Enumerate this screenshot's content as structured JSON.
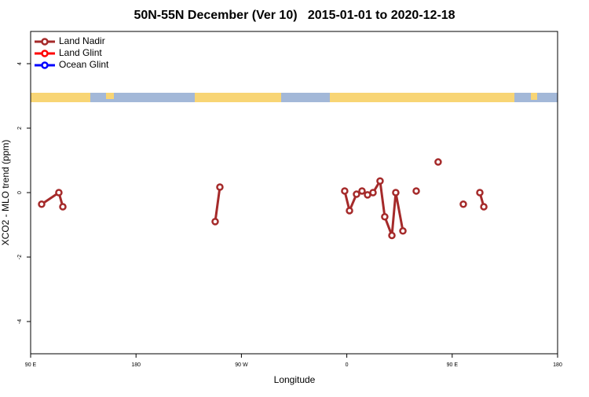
{
  "chart_data": {
    "type": "line",
    "title": "50N-55N December (Ver 10)   2015-01-01 to 2020-12-18",
    "x_label": "Longitude",
    "y_label": "XCO2 - MLO trend (ppm)",
    "xlim": [
      90,
      540
    ],
    "xticks": [
      {
        "value": 90,
        "label": "90 E"
      },
      180,
      {
        "value": 270,
        "label": "90 W"
      },
      {
        "value": 360,
        "label": "0"
      },
      {
        "value": 450,
        "label": "90 E"
      },
      {
        "value": 540,
        "label": "180"
      }
    ],
    "ylim": [
      -5,
      5
    ],
    "yticks": [
      -4,
      -2,
      0,
      2,
      4
    ],
    "legend": "top-left",
    "series": [
      {
        "name": "Land Nadir",
        "color": "#a52a2a",
        "x": [
          99.4,
          114.1,
          117.5,
          null,
          247.6,
          251.6,
          null,
          358.2,
          362.3,
          368.3,
          373,
          377.7,
          382.4,
          388.4,
          392.4,
          398.5,
          401.8,
          407.9,
          null,
          419.3,
          null,
          438,
          null,
          459.5,
          null,
          473.6,
          477
        ],
        "values": [
          -0.36,
          0,
          -0.44,
          null,
          -0.9,
          0.17,
          null,
          0.05,
          -0.56,
          -0.05,
          0.05,
          -0.07,
          0,
          0.36,
          -0.75,
          -1.33,
          0,
          -1.19,
          null,
          0.05,
          null,
          0.95,
          null,
          -0.36,
          null,
          0,
          -0.44
        ]
      },
      {
        "name": "Land Glint",
        "color": "#ff0000",
        "x": [],
        "values": []
      },
      {
        "name": "Ocean Glint",
        "color": "#0000ff",
        "x": [],
        "values": []
      }
    ]
  }
}
